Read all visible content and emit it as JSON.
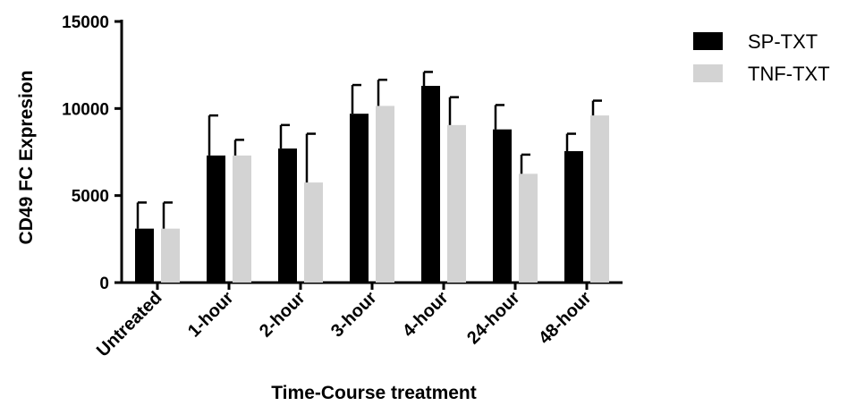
{
  "chart_data": {
    "type": "bar",
    "title": "",
    "xlabel": "Time-Course treatment",
    "ylabel": "CD49 FC Expresion",
    "ylim": [
      0,
      15000
    ],
    "yticks": [
      0,
      5000,
      10000,
      15000
    ],
    "categories": [
      "Untreated",
      "1-hour",
      "2-hour",
      "3-hour",
      "4-hour",
      "24-hour",
      "48-hour"
    ],
    "series": [
      {
        "name": "SP-TXT",
        "color": "#000000",
        "values": [
          3100,
          7300,
          7700,
          9700,
          11300,
          8800,
          7550
        ],
        "errors": [
          1500,
          2300,
          1350,
          1650,
          800,
          1400,
          1000
        ]
      },
      {
        "name": "TNF-TXT",
        "color": "#d3d3d3",
        "values": [
          3100,
          7300,
          5750,
          10150,
          9050,
          6250,
          9600
        ],
        "errors": [
          1500,
          900,
          2800,
          1500,
          1600,
          1100,
          850
        ]
      }
    ],
    "legend_position": "top-right",
    "grid": false
  }
}
